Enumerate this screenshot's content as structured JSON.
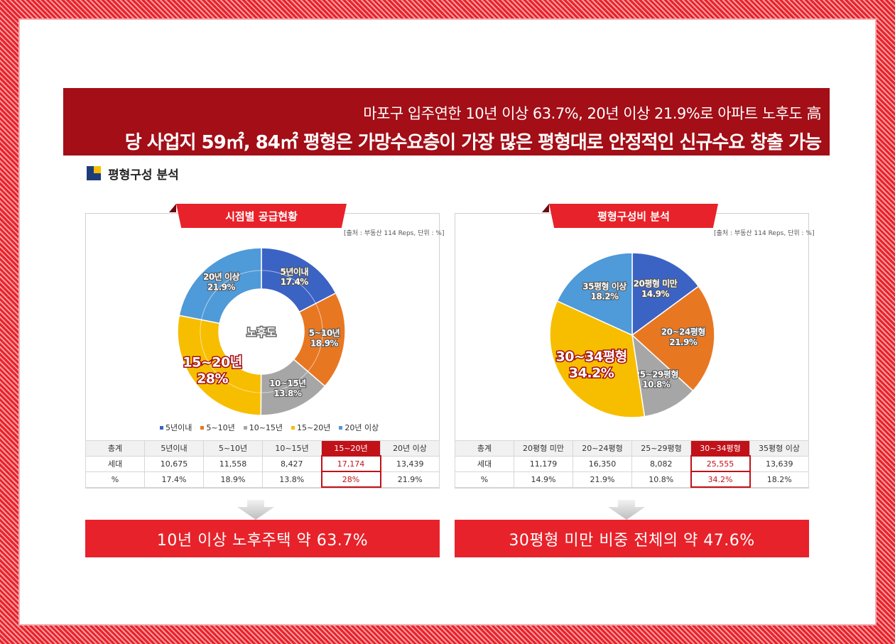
{
  "banner": {
    "line1": "마포구 입주연한 10년 이상 63.7%, 20년 이상 21.9%로 아파트 노후도 高",
    "line2": "당 사업지 59㎡, 84㎡ 평형은 가망수요층이 가장 많은 평형대로 안정적인 신규수요 창출 가능"
  },
  "section_title": "평형구성 분석",
  "colors": {
    "blue": "#3b63c4",
    "orange": "#e87722",
    "gray": "#a6a6a6",
    "yellow": "#f7be00",
    "lightblue": "#4f9ad8",
    "accent": "#e8222a",
    "banner": "#a30e17"
  },
  "chart_data": [
    {
      "type": "pie",
      "variant": "donut",
      "title": "시점별 공급현황",
      "source": "[출처 : 부동산 114 Reps, 단위 : %]",
      "center_label": "노후도",
      "slices": [
        {
          "name": "5년이내",
          "label": "5년이내",
          "value": 17.4,
          "value_label": "17.4%"
        },
        {
          "name": "5~10년",
          "label": "5~10년",
          "value": 18.9,
          "value_label": "18.9%"
        },
        {
          "name": "10~15년",
          "label": "10~15년",
          "value": 13.8,
          "value_label": "13.8%"
        },
        {
          "name": "15~20년",
          "label": "15~20년",
          "value": 28,
          "value_label": "28%"
        },
        {
          "name": "20년 이상",
          "label": "20년 이상",
          "value": 21.9,
          "value_label": "21.9%"
        }
      ],
      "legend": [
        "5년이내",
        "5~10년",
        "10~15년",
        "15~20년",
        "20년 이상"
      ],
      "table": {
        "header": [
          "총계",
          "5년이내",
          "5~10년",
          "10~15년",
          "15~20년",
          "20년 이상"
        ],
        "rows": [
          [
            "세대",
            "10,675",
            "11,558",
            "8,427",
            "17,174",
            "13,439"
          ],
          [
            "%",
            "17.4%",
            "18.9%",
            "13.8%",
            "28%",
            "21.9%"
          ]
        ],
        "highlight_col": 4
      },
      "summary": "10년 이상 노후주택 약 63.7%"
    },
    {
      "type": "pie",
      "title": "평형구성비 분석",
      "source": "[출처 : 부동산 114 Reps, 단위 : %]",
      "slices": [
        {
          "name": "20평형 미만",
          "label": "20평형 미만",
          "value": 14.9,
          "value_label": "14.9%"
        },
        {
          "name": "20~24평형",
          "label": "20~24평형",
          "value": 21.9,
          "value_label": "21.9%"
        },
        {
          "name": "25~29평형",
          "label": "25~29평형",
          "value": 10.8,
          "value_label": "10.8%"
        },
        {
          "name": "30~34평형",
          "label": "30~34평형",
          "value": 34.2,
          "value_label": "34.2%"
        },
        {
          "name": "35평형 이상",
          "label": "35평형 이상",
          "value": 18.2,
          "value_label": "18.2%"
        }
      ],
      "table": {
        "header": [
          "총계",
          "20평형 미만",
          "20~24평형",
          "25~29평형",
          "30~34평형",
          "35평형 이상"
        ],
        "rows": [
          [
            "세대",
            "11,179",
            "16,350",
            "8,082",
            "25,555",
            "13,639"
          ],
          [
            "%",
            "14.9%",
            "21.9%",
            "10.8%",
            "34.2%",
            "18.2%"
          ]
        ],
        "highlight_col": 4
      },
      "summary": "30평형 미만 비중 전체의 약 47.6%"
    }
  ]
}
